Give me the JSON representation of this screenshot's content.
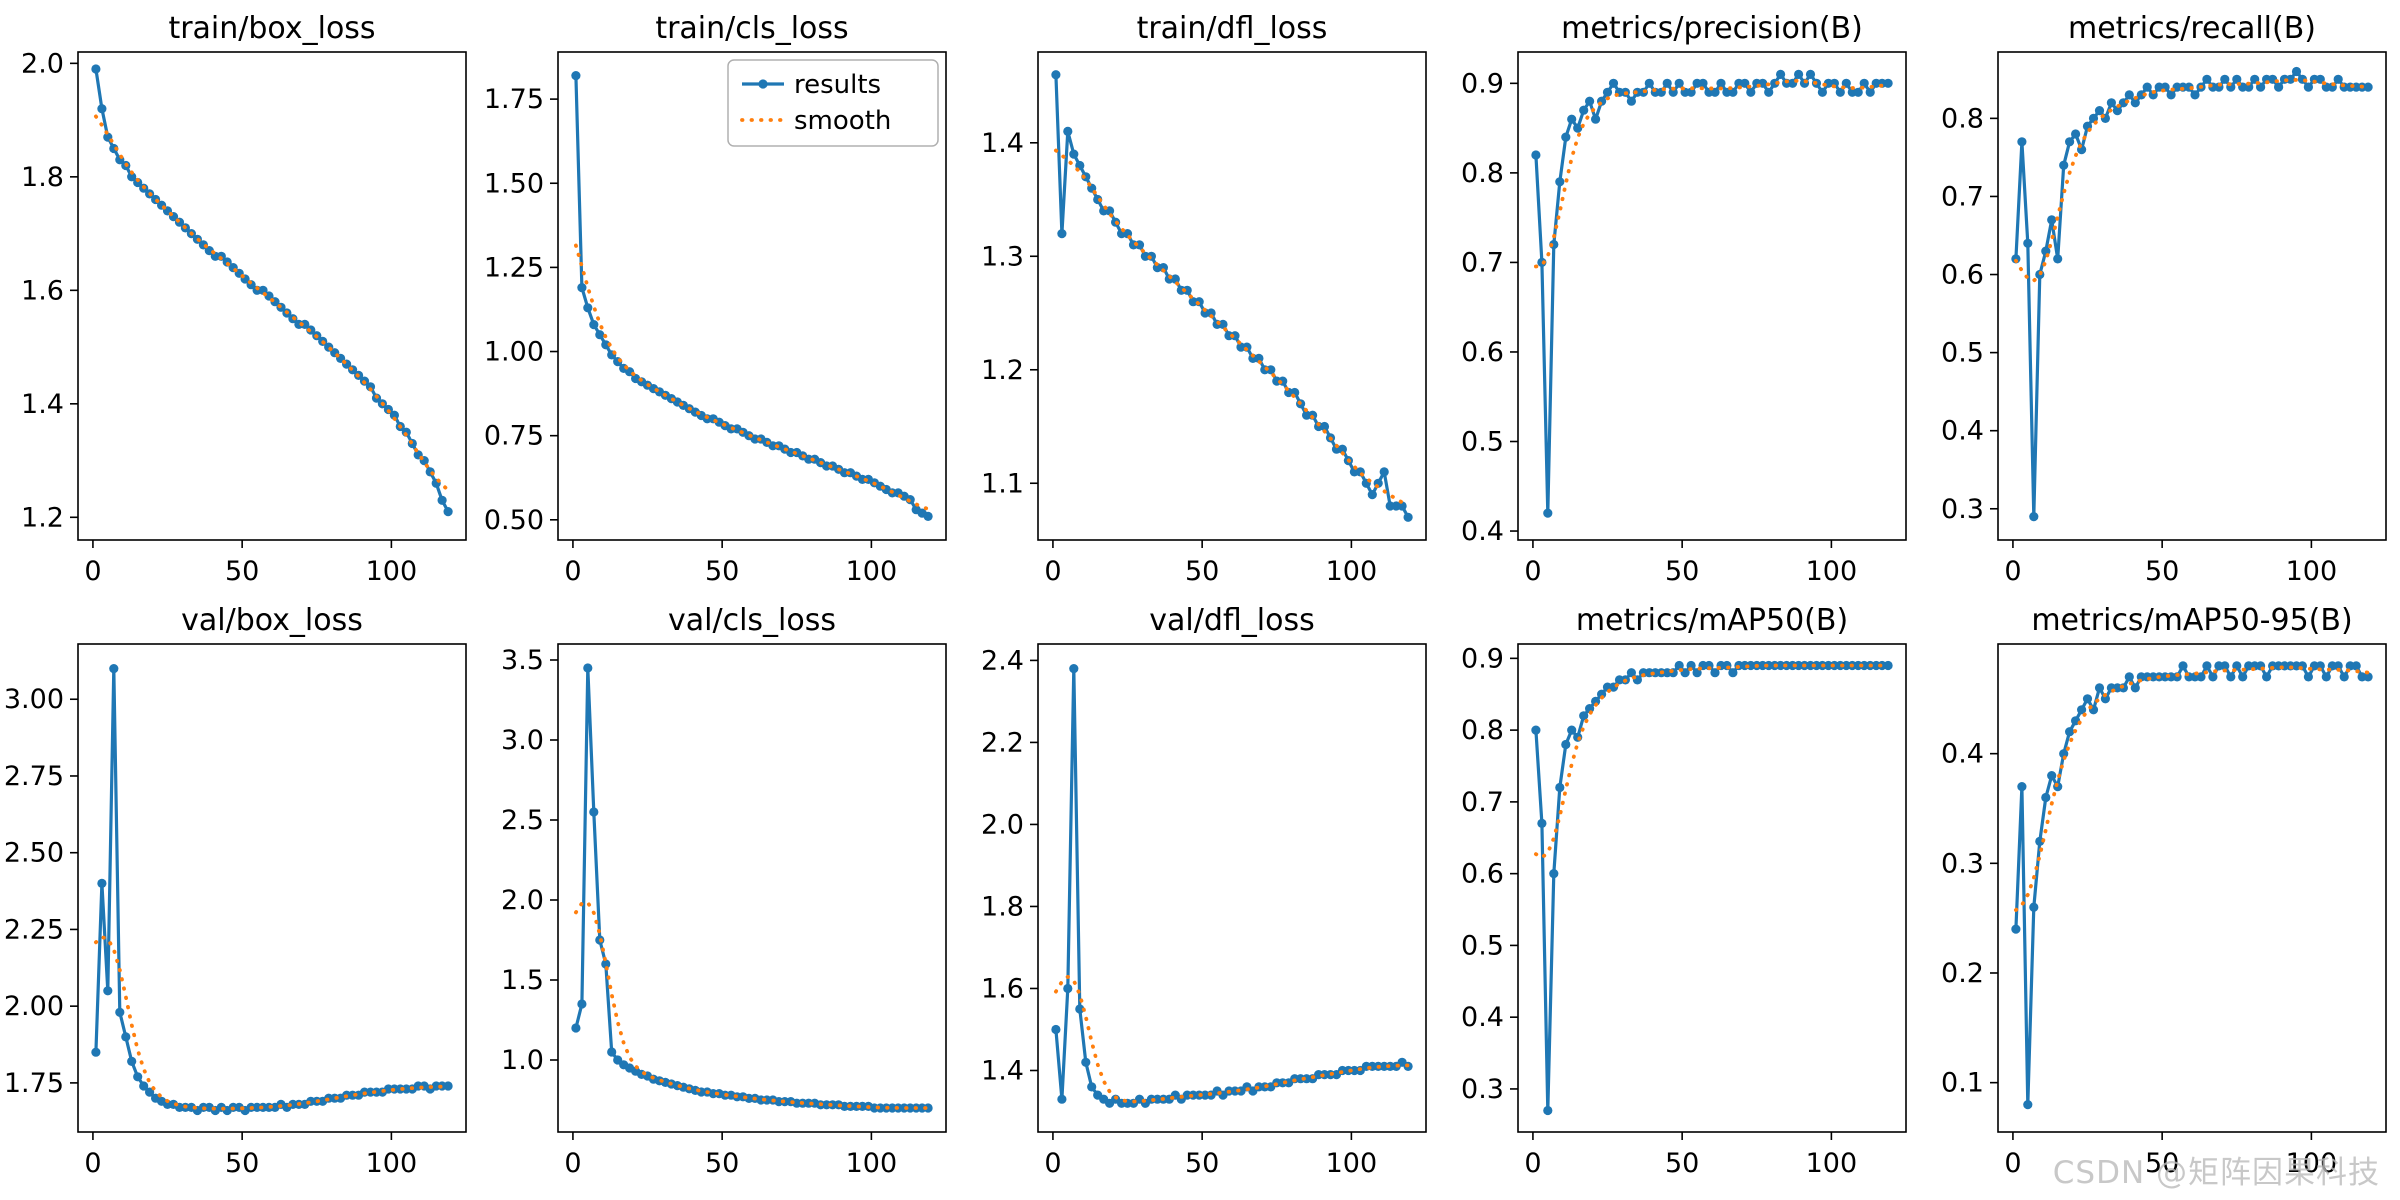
{
  "figure": {
    "background": "#ffffff",
    "results_color": "#1f77b4",
    "smooth_color": "#ff7f0e"
  },
  "legend": {
    "host_chart": "train/cls_loss",
    "entries": [
      "results",
      "smooth"
    ]
  },
  "watermark": {
    "text": "CSDN @矩阵因果科技"
  },
  "chart_data": {
    "type": "line",
    "layout": "2 rows x 5 columns",
    "series_names": [
      "results",
      "smooth"
    ],
    "smooth_note": "smooth series is gaussian-smoothed version of results",
    "grid": "off",
    "xlim": [
      -5,
      125
    ],
    "xticks": [
      "0",
      "50",
      "100"
    ],
    "x": [
      1,
      3,
      5,
      7,
      9,
      11,
      13,
      15,
      17,
      19,
      21,
      23,
      25,
      27,
      29,
      31,
      33,
      35,
      37,
      39,
      41,
      43,
      45,
      47,
      49,
      51,
      53,
      55,
      57,
      59,
      61,
      63,
      65,
      67,
      69,
      71,
      73,
      75,
      77,
      79,
      81,
      83,
      85,
      87,
      89,
      91,
      93,
      95,
      97,
      99,
      101,
      103,
      105,
      107,
      109,
      111,
      113,
      115,
      117,
      119
    ],
    "charts": [
      {
        "title": "train/box_loss",
        "ylim": [
          1.16,
          2.02
        ],
        "yticks": [
          "1.2",
          "1.4",
          "1.6",
          "1.8",
          "2.0"
        ],
        "values": [
          1.99,
          1.92,
          1.87,
          1.85,
          1.83,
          1.82,
          1.8,
          1.79,
          1.78,
          1.77,
          1.76,
          1.75,
          1.74,
          1.73,
          1.72,
          1.71,
          1.7,
          1.69,
          1.68,
          1.67,
          1.66,
          1.66,
          1.65,
          1.64,
          1.63,
          1.62,
          1.61,
          1.6,
          1.6,
          1.59,
          1.58,
          1.57,
          1.56,
          1.55,
          1.54,
          1.54,
          1.53,
          1.52,
          1.51,
          1.5,
          1.49,
          1.48,
          1.47,
          1.46,
          1.45,
          1.44,
          1.43,
          1.41,
          1.4,
          1.39,
          1.38,
          1.36,
          1.35,
          1.33,
          1.31,
          1.3,
          1.28,
          1.26,
          1.23,
          1.21
        ]
      },
      {
        "title": "train/cls_loss",
        "ylim": [
          0.44,
          1.89
        ],
        "yticks": [
          "0.50",
          "0.75",
          "1.00",
          "1.25",
          "1.50",
          "1.75"
        ],
        "values": [
          1.82,
          1.19,
          1.13,
          1.08,
          1.05,
          1.02,
          0.99,
          0.97,
          0.95,
          0.94,
          0.92,
          0.91,
          0.9,
          0.89,
          0.88,
          0.87,
          0.86,
          0.85,
          0.84,
          0.83,
          0.82,
          0.81,
          0.8,
          0.8,
          0.79,
          0.78,
          0.77,
          0.77,
          0.76,
          0.75,
          0.74,
          0.74,
          0.73,
          0.72,
          0.72,
          0.71,
          0.7,
          0.7,
          0.69,
          0.68,
          0.68,
          0.67,
          0.66,
          0.66,
          0.65,
          0.64,
          0.64,
          0.63,
          0.62,
          0.62,
          0.61,
          0.6,
          0.59,
          0.58,
          0.58,
          0.57,
          0.56,
          0.53,
          0.52,
          0.51
        ]
      },
      {
        "title": "train/dfl_loss",
        "ylim": [
          1.05,
          1.48
        ],
        "yticks": [
          "1.1",
          "1.2",
          "1.3",
          "1.4"
        ],
        "values": [
          1.46,
          1.32,
          1.41,
          1.39,
          1.38,
          1.37,
          1.36,
          1.35,
          1.34,
          1.34,
          1.33,
          1.32,
          1.32,
          1.31,
          1.31,
          1.3,
          1.3,
          1.29,
          1.29,
          1.28,
          1.28,
          1.27,
          1.27,
          1.26,
          1.26,
          1.25,
          1.25,
          1.24,
          1.24,
          1.23,
          1.23,
          1.22,
          1.22,
          1.21,
          1.21,
          1.2,
          1.2,
          1.19,
          1.19,
          1.18,
          1.18,
          1.17,
          1.16,
          1.16,
          1.15,
          1.15,
          1.14,
          1.13,
          1.13,
          1.12,
          1.11,
          1.11,
          1.1,
          1.09,
          1.1,
          1.11,
          1.08,
          1.08,
          1.08,
          1.07
        ]
      },
      {
        "title": "metrics/precision(B)",
        "ylim": [
          0.39,
          0.935
        ],
        "yticks": [
          "0.4",
          "0.5",
          "0.6",
          "0.7",
          "0.8",
          "0.9"
        ],
        "values": [
          0.82,
          0.7,
          0.42,
          0.72,
          0.79,
          0.84,
          0.86,
          0.85,
          0.87,
          0.88,
          0.86,
          0.88,
          0.89,
          0.9,
          0.89,
          0.89,
          0.88,
          0.89,
          0.89,
          0.9,
          0.89,
          0.89,
          0.9,
          0.89,
          0.9,
          0.89,
          0.89,
          0.9,
          0.9,
          0.89,
          0.89,
          0.9,
          0.89,
          0.89,
          0.9,
          0.9,
          0.89,
          0.9,
          0.9,
          0.89,
          0.9,
          0.91,
          0.9,
          0.9,
          0.91,
          0.9,
          0.91,
          0.9,
          0.89,
          0.9,
          0.9,
          0.89,
          0.9,
          0.89,
          0.89,
          0.9,
          0.89,
          0.9,
          0.9,
          0.9
        ]
      },
      {
        "title": "metrics/recall(B)",
        "ylim": [
          0.26,
          0.885
        ],
        "yticks": [
          "0.3",
          "0.4",
          "0.5",
          "0.6",
          "0.7",
          "0.8"
        ],
        "values": [
          0.62,
          0.77,
          0.64,
          0.29,
          0.6,
          0.63,
          0.67,
          0.62,
          0.74,
          0.77,
          0.78,
          0.76,
          0.79,
          0.8,
          0.81,
          0.8,
          0.82,
          0.81,
          0.82,
          0.83,
          0.82,
          0.83,
          0.84,
          0.83,
          0.84,
          0.84,
          0.83,
          0.84,
          0.84,
          0.84,
          0.83,
          0.84,
          0.85,
          0.84,
          0.84,
          0.85,
          0.84,
          0.85,
          0.84,
          0.84,
          0.85,
          0.84,
          0.85,
          0.85,
          0.84,
          0.85,
          0.85,
          0.86,
          0.85,
          0.84,
          0.85,
          0.85,
          0.84,
          0.84,
          0.85,
          0.84,
          0.84,
          0.84,
          0.84,
          0.84
        ]
      },
      {
        "title": "val/box_loss",
        "ylim": [
          1.59,
          3.18
        ],
        "yticks": [
          "1.75",
          "2.00",
          "2.25",
          "2.50",
          "2.75",
          "3.00"
        ],
        "values": [
          1.85,
          2.4,
          2.05,
          3.1,
          1.98,
          1.9,
          1.82,
          1.77,
          1.74,
          1.72,
          1.7,
          1.69,
          1.68,
          1.68,
          1.67,
          1.67,
          1.67,
          1.66,
          1.67,
          1.67,
          1.66,
          1.67,
          1.66,
          1.67,
          1.67,
          1.66,
          1.67,
          1.67,
          1.67,
          1.67,
          1.67,
          1.68,
          1.67,
          1.68,
          1.68,
          1.68,
          1.69,
          1.69,
          1.69,
          1.7,
          1.7,
          1.7,
          1.71,
          1.71,
          1.71,
          1.72,
          1.72,
          1.72,
          1.72,
          1.73,
          1.73,
          1.73,
          1.73,
          1.73,
          1.74,
          1.74,
          1.73,
          1.74,
          1.74,
          1.74
        ]
      },
      {
        "title": "val/cls_loss",
        "ylim": [
          0.55,
          3.6
        ],
        "yticks": [
          "1.0",
          "1.5",
          "2.0",
          "2.5",
          "3.0",
          "3.5"
        ],
        "values": [
          1.2,
          1.35,
          3.45,
          2.55,
          1.75,
          1.6,
          1.05,
          1.0,
          0.97,
          0.95,
          0.93,
          0.91,
          0.9,
          0.88,
          0.87,
          0.86,
          0.85,
          0.84,
          0.83,
          0.82,
          0.81,
          0.8,
          0.8,
          0.79,
          0.79,
          0.78,
          0.78,
          0.77,
          0.77,
          0.76,
          0.76,
          0.75,
          0.75,
          0.75,
          0.74,
          0.74,
          0.74,
          0.73,
          0.73,
          0.73,
          0.73,
          0.72,
          0.72,
          0.72,
          0.72,
          0.71,
          0.71,
          0.71,
          0.71,
          0.71,
          0.7,
          0.7,
          0.7,
          0.7,
          0.7,
          0.7,
          0.7,
          0.7,
          0.7,
          0.7
        ]
      },
      {
        "title": "val/dfl_loss",
        "ylim": [
          1.25,
          2.44
        ],
        "yticks": [
          "1.4",
          "1.6",
          "1.8",
          "2.0",
          "2.2",
          "2.4"
        ],
        "values": [
          1.5,
          1.33,
          1.6,
          2.38,
          1.55,
          1.42,
          1.36,
          1.34,
          1.33,
          1.32,
          1.33,
          1.32,
          1.32,
          1.32,
          1.33,
          1.32,
          1.33,
          1.33,
          1.33,
          1.33,
          1.34,
          1.33,
          1.34,
          1.34,
          1.34,
          1.34,
          1.34,
          1.35,
          1.34,
          1.35,
          1.35,
          1.35,
          1.36,
          1.35,
          1.36,
          1.36,
          1.36,
          1.37,
          1.37,
          1.37,
          1.38,
          1.38,
          1.38,
          1.38,
          1.39,
          1.39,
          1.39,
          1.39,
          1.4,
          1.4,
          1.4,
          1.4,
          1.41,
          1.41,
          1.41,
          1.41,
          1.41,
          1.41,
          1.42,
          1.41
        ]
      },
      {
        "title": "metrics/mAP50(B)",
        "ylim": [
          0.24,
          0.92
        ],
        "yticks": [
          "0.3",
          "0.4",
          "0.5",
          "0.6",
          "0.7",
          "0.8",
          "0.9"
        ],
        "values": [
          0.8,
          0.67,
          0.27,
          0.6,
          0.72,
          0.78,
          0.8,
          0.79,
          0.82,
          0.83,
          0.84,
          0.85,
          0.86,
          0.86,
          0.87,
          0.87,
          0.88,
          0.87,
          0.88,
          0.88,
          0.88,
          0.88,
          0.88,
          0.88,
          0.89,
          0.88,
          0.89,
          0.88,
          0.89,
          0.89,
          0.88,
          0.89,
          0.89,
          0.88,
          0.89,
          0.89,
          0.89,
          0.89,
          0.89,
          0.89,
          0.89,
          0.89,
          0.89,
          0.89,
          0.89,
          0.89,
          0.89,
          0.89,
          0.89,
          0.89,
          0.89,
          0.89,
          0.89,
          0.89,
          0.89,
          0.89,
          0.89,
          0.89,
          0.89,
          0.89
        ]
      },
      {
        "title": "metrics/mAP50-95(B)",
        "ylim": [
          0.055,
          0.5
        ],
        "yticks": [
          "0.1",
          "0.2",
          "0.3",
          "0.4"
        ],
        "values": [
          0.24,
          0.37,
          0.08,
          0.26,
          0.32,
          0.36,
          0.38,
          0.37,
          0.4,
          0.42,
          0.43,
          0.44,
          0.45,
          0.44,
          0.46,
          0.45,
          0.46,
          0.46,
          0.46,
          0.47,
          0.46,
          0.47,
          0.47,
          0.47,
          0.47,
          0.47,
          0.47,
          0.47,
          0.48,
          0.47,
          0.47,
          0.47,
          0.48,
          0.47,
          0.48,
          0.48,
          0.47,
          0.48,
          0.47,
          0.48,
          0.48,
          0.48,
          0.47,
          0.48,
          0.48,
          0.48,
          0.48,
          0.48,
          0.48,
          0.47,
          0.48,
          0.48,
          0.47,
          0.48,
          0.48,
          0.47,
          0.48,
          0.48,
          0.47,
          0.47
        ]
      }
    ]
  }
}
